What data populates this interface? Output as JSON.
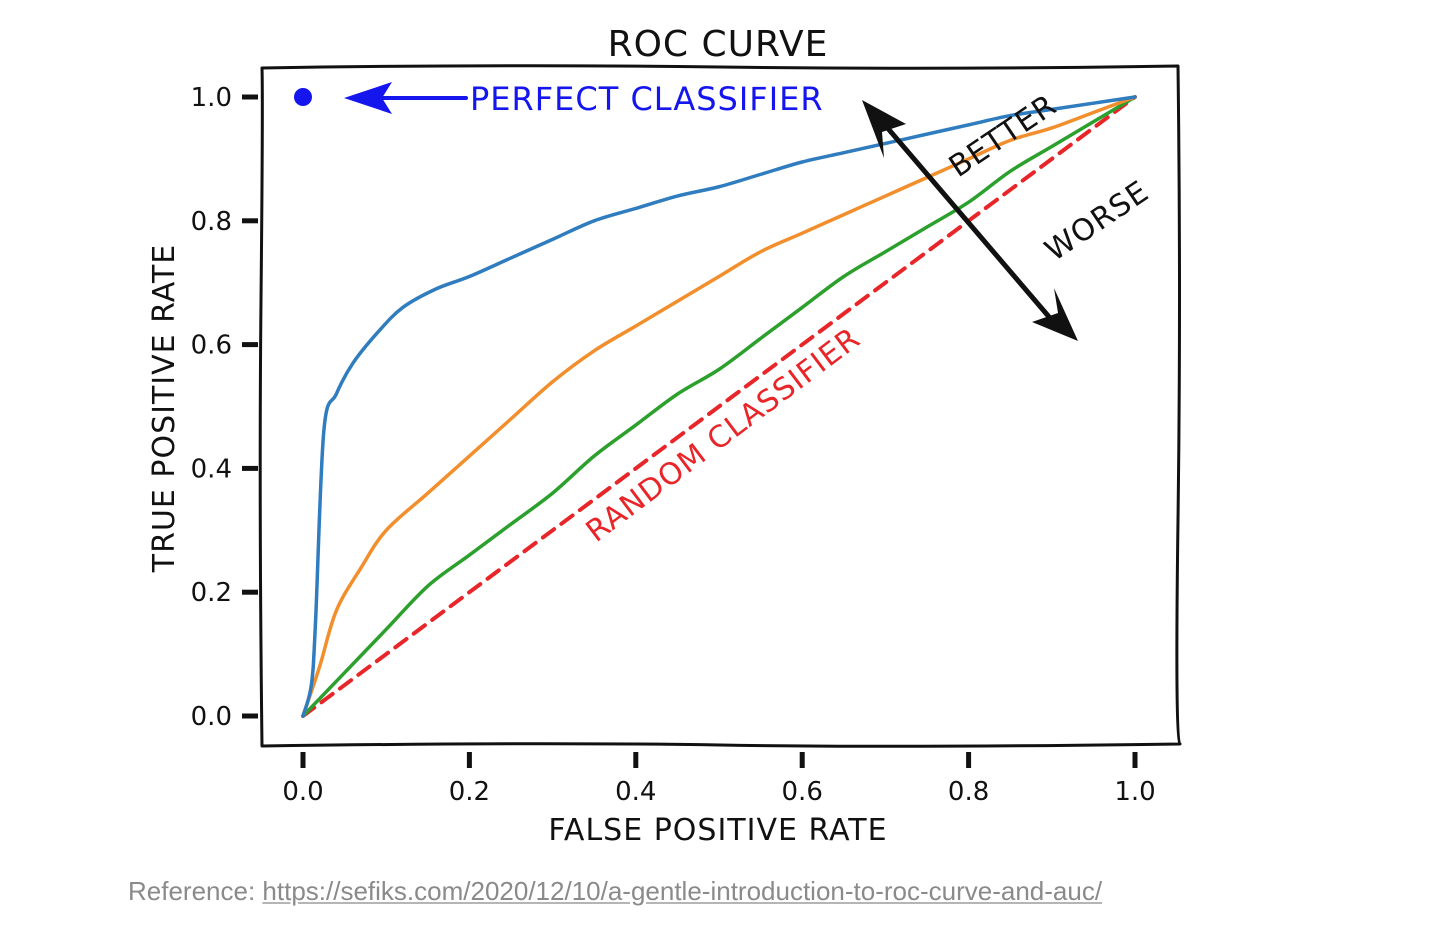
{
  "chart_data": {
    "type": "line",
    "title": "ROC CURVE",
    "xlabel": "FALSE POSITIVE RATE",
    "ylabel": "TRUE POSITIVE RATE",
    "xlim": [
      0,
      1
    ],
    "ylim": [
      0,
      1
    ],
    "xticks": [
      "0.0",
      "0.2",
      "0.4",
      "0.6",
      "0.8",
      "1.0"
    ],
    "yticks": [
      "0.0",
      "0.2",
      "0.4",
      "0.6",
      "0.8",
      "1.0"
    ],
    "grid": false,
    "series": [
      {
        "name": "blue classifier",
        "color": "#2f7cbf",
        "style": "solid",
        "x": [
          0,
          0.01,
          0.015,
          0.025,
          0.04,
          0.06,
          0.09,
          0.12,
          0.16,
          0.2,
          0.25,
          0.3,
          0.35,
          0.4,
          0.45,
          0.5,
          0.55,
          0.6,
          0.65,
          0.7,
          0.75,
          0.8,
          0.85,
          0.9,
          0.95,
          1.0
        ],
        "y": [
          0,
          0.05,
          0.15,
          0.46,
          0.52,
          0.57,
          0.62,
          0.66,
          0.69,
          0.71,
          0.74,
          0.77,
          0.8,
          0.82,
          0.84,
          0.855,
          0.875,
          0.895,
          0.91,
          0.925,
          0.94,
          0.955,
          0.97,
          0.98,
          0.99,
          1.0
        ]
      },
      {
        "name": "orange classifier",
        "color": "#f28e2b",
        "style": "solid",
        "x": [
          0,
          0.02,
          0.04,
          0.07,
          0.1,
          0.15,
          0.2,
          0.25,
          0.3,
          0.35,
          0.4,
          0.45,
          0.5,
          0.55,
          0.6,
          0.65,
          0.7,
          0.75,
          0.8,
          0.85,
          0.9,
          0.95,
          1.0
        ],
        "y": [
          0,
          0.08,
          0.17,
          0.24,
          0.3,
          0.36,
          0.42,
          0.48,
          0.54,
          0.59,
          0.63,
          0.67,
          0.71,
          0.75,
          0.78,
          0.81,
          0.84,
          0.87,
          0.9,
          0.93,
          0.95,
          0.975,
          1.0
        ]
      },
      {
        "name": "green classifier",
        "color": "#2ca02c",
        "style": "solid",
        "x": [
          0,
          0.05,
          0.1,
          0.15,
          0.2,
          0.25,
          0.3,
          0.35,
          0.4,
          0.45,
          0.5,
          0.55,
          0.6,
          0.65,
          0.7,
          0.75,
          0.8,
          0.85,
          0.9,
          0.95,
          1.0
        ],
        "y": [
          0,
          0.07,
          0.14,
          0.21,
          0.26,
          0.31,
          0.36,
          0.42,
          0.47,
          0.52,
          0.56,
          0.61,
          0.66,
          0.71,
          0.75,
          0.79,
          0.83,
          0.88,
          0.92,
          0.96,
          1.0
        ]
      },
      {
        "name": "random classifier",
        "color": "#e8262a",
        "style": "dashed",
        "x": [
          0,
          1
        ],
        "y": [
          0,
          1
        ]
      }
    ],
    "points": [
      {
        "name": "perfect classifier",
        "x": 0,
        "y": 1,
        "color": "#1515ee"
      }
    ],
    "annotations": [
      {
        "text": "PERFECT CLASSIFIER",
        "color": "#1515ee"
      },
      {
        "text": "BETTER",
        "color": "#000000"
      },
      {
        "text": "WORSE",
        "color": "#000000"
      },
      {
        "text": "RANDOM CLASSIFIER",
        "color": "#e8262a"
      }
    ]
  },
  "reference": {
    "label": "Reference:",
    "url": "https://sefiks.com/2020/12/10/a-gentle-introduction-to-roc-curve-and-auc/"
  }
}
